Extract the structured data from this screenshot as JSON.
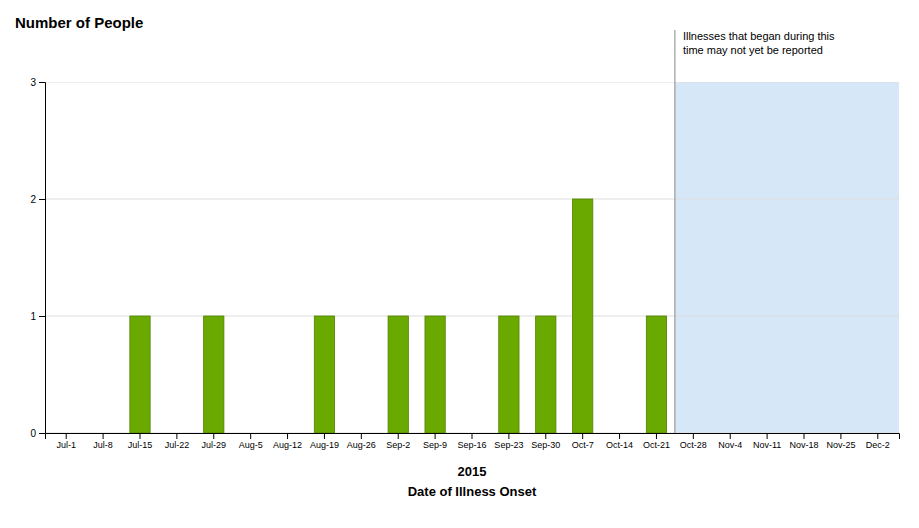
{
  "chart_data": {
    "type": "bar",
    "ylabel": "Number of People",
    "xlabel": "2015\nDate of Illness Onset",
    "categories": [
      "Jul-1",
      "Jul-8",
      "Jul-15",
      "Jul-22",
      "Jul-29",
      "Aug-5",
      "Aug-12",
      "Aug-19",
      "Aug-26",
      "Sep-2",
      "Sep-9",
      "Sep-16",
      "Sep-23",
      "Sep-30",
      "Oct-7",
      "Oct-14",
      "Oct-21",
      "Oct-28",
      "Nov-4",
      "Nov-11",
      "Nov-18",
      "Nov-25",
      "Dec-2"
    ],
    "values": [
      0,
      0,
      1,
      0,
      1,
      0,
      0,
      1,
      0,
      1,
      1,
      0,
      1,
      1,
      2,
      0,
      1,
      0,
      0,
      0,
      0,
      0,
      0
    ],
    "color": "#6aaa00",
    "ylim": [
      0,
      3
    ],
    "yticks": [
      0,
      1,
      2,
      3
    ],
    "grid": true,
    "annotation": {
      "text": "Illnesses that began during this\ntime may not yet be reported",
      "category": "Oct-28",
      "color": "#d6e8f7"
    }
  }
}
